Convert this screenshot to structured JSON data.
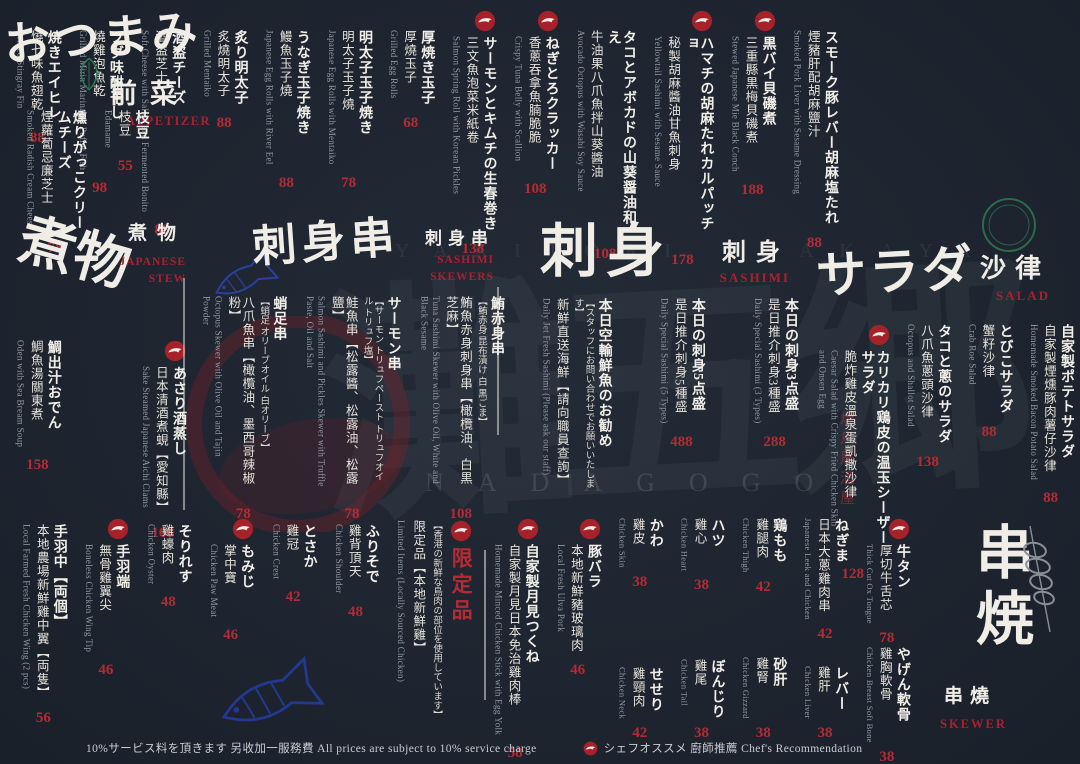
{
  "branding": {
    "name_kanji": "灘五郷",
    "name_latin": "NADAGOGO",
    "tagline": "YAKITORI IZAKAYA",
    "seal_text": "焼鳥居酒屋"
  },
  "colors": {
    "background": "#1e2530",
    "text": "#efede6",
    "price_red": "#b42b34",
    "section_en_red": "#ab2030",
    "seal_green": "#2f7d52",
    "fish_blue": "#2b3f9e"
  },
  "footer": {
    "service": "10%サービス料を頂きます 另收加一服務費  All prices are subject to 10% service charge",
    "chef_note": "シェフオススメ 廚師推薦  Chef's Recommendation"
  },
  "sections": [
    {
      "id": "appetizer",
      "title": {
        "calligraphy": "おつまみ",
        "label": "前菜",
        "en": "APPETIZER"
      },
      "sub_items": [
        {
          "jp": "枝豆",
          "cn": "枝豆",
          "en": "Edamame",
          "price": "55"
        },
        {
          "jp": "燻りがっこクリームチーズ",
          "cn": "煙蘿蔔忌廉芝士",
          "en": "Smoked Radish Cream Cheese",
          "price": "78"
        }
      ],
      "items": [
        {
          "jp": "スモーク豚レバー胡麻塩たれ",
          "cn": "煙豬肝配胡麻鹽汁",
          "en": "Smoked Pork Liver with Sesame Dressing",
          "price": "88"
        },
        {
          "jp": "黒バイ貝磯煮",
          "cn": "三重縣黒梅貝磯煮",
          "en": "Stewed Japanese Mie Black Conch",
          "price": "188",
          "chef": true
        },
        {
          "jp": "ハマチの胡麻たれカルパッチョ",
          "cn": "秘製胡麻醬油甘魚刺身",
          "en": "Yellowtail Sashimi with Sesame Sauce",
          "price": "178",
          "chef": true
        },
        {
          "jp": "タコとアボカドの山葵醤油和え",
          "cn": "牛油果八爪魚拌山葵醬油",
          "en": "Avocado Octopus with Wasabi Soy Sauce",
          "price": "108"
        },
        {
          "jp": "ねぎとろクラッカー",
          "cn": "香蔥吞拿魚腩脆脆",
          "en": "Crispy Tuna Belly with Scallion",
          "price": "108",
          "chef": true
        },
        {
          "jp": "サーモンとキムチの生春巻き",
          "cn": "三文魚泡菜米紙卷",
          "en": "Salmon Spring Roll with Korean Pickles",
          "price": "138",
          "chef": true
        },
        {
          "jp": "厚焼き玉子",
          "cn": "厚燒玉子",
          "en": "Grilled Egg Rolls",
          "price": "68"
        },
        {
          "jp": "明太子玉子焼き",
          "cn": "明太子玉子燒",
          "en": "Japanese Egg Rolls with Mentaiko",
          "price": "78"
        },
        {
          "jp": "うなぎ玉子焼き",
          "cn": "鰻魚玉子燒",
          "en": "Japanese Egg Rolls with River Eel",
          "price": "88"
        },
        {
          "jp": "炙り明太子",
          "cn": "炙燒明太子",
          "en": "Grilled Mentaiko",
          "price": "88"
        },
        {
          "jp": "酒盗チーズ",
          "cn": "酒盗芝士",
          "en": "Soft Cheese with Salted and Fermented Bonito",
          "price": "88"
        },
        {
          "jp": "フグ味醂干し",
          "cn": "燒雞泡魚乾",
          "en": "Grilled Mirin Marinated Puffer Fish",
          "price": "98"
        },
        {
          "jp": "焼きエイヒレ",
          "cn": "燒七味魚翅乾",
          "en": "Grilled Stingray Fin",
          "price": "88"
        }
      ]
    },
    {
      "id": "stew",
      "title": {
        "calligraphy": "煮物",
        "label": "煮物",
        "en": "JAPANESE STEW"
      },
      "items": [
        {
          "jp": "あさり酒蒸し",
          "cn": "日本清酒煮蜆【愛知縣】",
          "en": "Sake Steamed Japanese Aichi Clams",
          "price": "168",
          "chef": true
        },
        {
          "jp": "鯛出汁おでん",
          "cn": "鯛魚湯關東煮",
          "en": "Oden with Sea Bream Soup",
          "price": "158"
        }
      ]
    },
    {
      "id": "skewers",
      "title": {
        "calligraphy": "刺身串",
        "label": "刺身串",
        "en": "SASHIMI SKEWERS"
      },
      "items": [
        {
          "jp": "鮪赤身串",
          "jp2": "【鮪赤身 昆布漬け 白 黒ごま】",
          "cn": "鮪魚赤身刺身串【橄欖油、白黒芝麻】",
          "en": "Tuna Sashimi Skewer with Olive Oil, White and Black Sesame",
          "price": "108"
        },
        {
          "jp": "サーモン串",
          "jp2": "【サーモン トリュフペースト トリュフオイル トリュフ塩】",
          "cn": "鮭魚串【松露醬、松露油、松露鹽】",
          "en": "Salmon Sashimi and Pickles Skewer with Truffle Paste, Oil and Salt",
          "price": "78"
        },
        {
          "jp": "蛸足串",
          "jp2": "【蛸足 オリーブオイル 白オリーブ】",
          "cn": "八爪魚串【橄欖油、墨西哥辣椒粉】",
          "en": "Octopus Skewer with Olive Oil and Tajin Powder",
          "price": "78"
        }
      ]
    },
    {
      "id": "sashimi",
      "title": {
        "calligraphy": "刺身",
        "label": "刺身",
        "en": "SASHIMI"
      },
      "items": [
        {
          "jp": "本日の刺身3点盛",
          "cn": "是日推介刺身3種盛",
          "en": "Daily Special Sashimi (3 Types)",
          "price": "288"
        },
        {
          "jp": "本日の刺身5点盛",
          "cn": "是日推介刺身5種盛",
          "en": "Daily Special Sashimi (5 Types)",
          "price": "488"
        },
        {
          "jp": "本日空輸鮮魚のお勧め",
          "jp2": "【スタッフにお問い合わせでお願いいたします】",
          "cn": "新鮮直送海鮮【請向職員查詢】",
          "en": "Daily Jet Fresh Sashimi (Please ask our staff)"
        }
      ]
    },
    {
      "id": "salad",
      "title": {
        "calligraphy": "サラダ",
        "label": "沙律",
        "en": "SALAD"
      },
      "items": [
        {
          "jp": "自家製ポテトサラダ",
          "cn": "自家製煙燻豚肉薯仔沙律",
          "en": "Homemade Smoked Bacon Potato Salad",
          "price": "88"
        },
        {
          "jp": "とびこサラダ",
          "cn": "蟹籽沙律",
          "en": "Crab Roe Salad",
          "price": "88"
        },
        {
          "jp": "タコと蔥のサラダ",
          "cn": "八爪魚蔥頭沙律",
          "en": "Octopus and Shallot Salad",
          "price": "138"
        },
        {
          "jp": "カリカリ鶏皮の温玉シーザーサラダ",
          "cn": "脆炸雞皮溫泉蛋凱撒沙律",
          "en": "Caesar Salad with Crispy Fried Chicken Skin and Onsen Egg",
          "price": "128",
          "chef": true
        }
      ]
    },
    {
      "id": "skewer",
      "title": {
        "calligraphy": "串焼",
        "label": "串燒",
        "en": "SKEWER"
      },
      "limited": {
        "title": "限定品",
        "note_jp": "【香港の新鮮な鳥肉の部位を使用しています】",
        "cn": "限定品【本地新鮮雞】",
        "en": "Limited Items (Locally Sourced Chicken)"
      },
      "items": [
        {
          "stack": [
            {
              "jp": "牛タン",
              "cn": "厚切牛舌芯",
              "en": "Thick Cut Ox Tongue",
              "price": "78",
              "chef": true
            },
            {
              "jp": "やげん軟骨",
              "cn": "雞胸軟骨",
              "en": "Chicken Breast Soft Bone",
              "price": "38"
            }
          ]
        },
        {
          "stack": [
            {
              "jp": "ねぎま",
              "cn": "日本大蔥雞肉串",
              "en": "Japanese Leek and Chicken",
              "price": "42"
            },
            {
              "jp": "レバー",
              "cn": "雞肝",
              "en": "Chicken Liver",
              "price": "38"
            }
          ]
        },
        {
          "stack": [
            {
              "jp": "鶏もも",
              "cn": "雞腿肉",
              "en": "Chicken Thigh",
              "price": "42"
            },
            {
              "jp": "砂肝",
              "cn": "雞腎",
              "en": "Chicken Gizzard",
              "price": "38"
            }
          ]
        },
        {
          "stack": [
            {
              "jp": "ハツ",
              "cn": "雞心",
              "en": "Chicken Heart",
              "price": "38"
            },
            {
              "jp": "ぼんじり",
              "cn": "雞尾",
              "en": "Chicken Tail",
              "price": "38"
            }
          ]
        },
        {
          "stack": [
            {
              "jp": "かわ",
              "cn": "雞皮",
              "en": "Chicken Skin",
              "price": "38"
            },
            {
              "jp": "せせり",
              "cn": "雞頸肉",
              "en": "Chicken Neck",
              "price": "42"
            }
          ]
        },
        {
          "jp": "豚バラ",
          "cn": "本地新鮮豬玻璃肉",
          "en": "Local Fresh Ulva Pork",
          "price": "46",
          "chef": true
        },
        {
          "jp": "自家製月見つくね",
          "cn": "自家製月見日本免治雞肉棒",
          "en": "Homemade Minced Chicken Stick with Egg Yolk",
          "price": "58",
          "chef": true
        },
        {
          "limited": true
        },
        {
          "jp": "ふりそで",
          "cn": "雞背頂天",
          "en": "Chicken Shoulder",
          "price": "48"
        },
        {
          "jp": "とさか",
          "cn": "雞冠",
          "en": "Chicken Crest",
          "price": "42"
        },
        {
          "jp": "もみじ",
          "cn": "掌中寶",
          "en": "Chicken Paw Meat",
          "price": "46",
          "chef": true
        },
        {
          "jp": "そりれす",
          "cn": "雞蠔肉",
          "en": "Chicken Oyster",
          "price": "48"
        },
        {
          "jp": "手羽端",
          "cn": "無骨雞翼尖",
          "en": "Boneless Chicken Wing Tip",
          "price": "46",
          "chef": true
        },
        {
          "jp": "手羽中【両個】",
          "cn": "本地農場新鮮雞中翼【両隻】",
          "en": "Local Farmed Fresh Chicken Wing (2 pcs)",
          "price": "56"
        }
      ]
    }
  ]
}
